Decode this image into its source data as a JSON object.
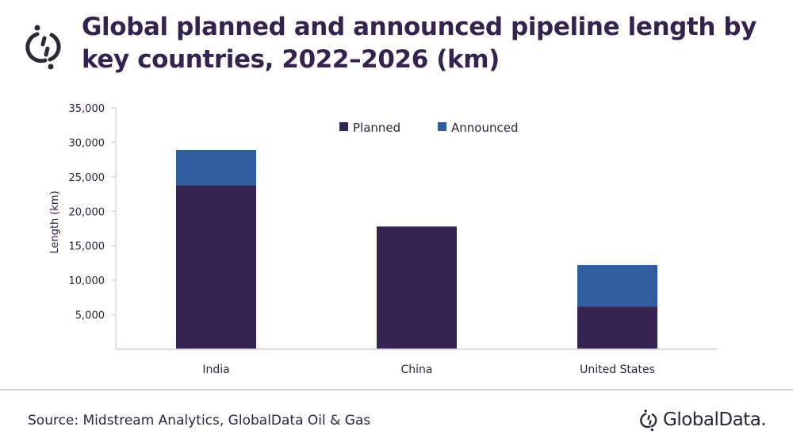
{
  "header": {
    "title": "Global planned and announced pipeline length by key countries, 2022–2026 (km)",
    "logo_icon": "globaldata-mark-icon"
  },
  "footer": {
    "source": "Source: Midstream Analytics, GlobalData Oil & Gas",
    "brand": "GlobalData."
  },
  "colors": {
    "planned": "#352452",
    "announced": "#2f5d9f",
    "text": "#2e2346",
    "axis": "#d9d9d9"
  },
  "chart_data": {
    "type": "bar",
    "stacked": true,
    "title": "Global planned and announced pipeline length by key countries, 2022–2026 (km)",
    "xlabel": "",
    "ylabel": "Length (km)",
    "ylim": [
      0,
      35000
    ],
    "yticks": [
      5000,
      10000,
      15000,
      20000,
      25000,
      30000,
      35000
    ],
    "ytick_labels": [
      "5,000",
      "10,000",
      "15,000",
      "20,000",
      "25,000",
      "30,000",
      "35,000"
    ],
    "grid": false,
    "legend_position": "top-center",
    "categories": [
      "India",
      "China",
      "United States"
    ],
    "series": [
      {
        "name": "Planned",
        "values": [
          23800,
          17800,
          6200
        ]
      },
      {
        "name": "Announced",
        "values": [
          5100,
          0,
          6000
        ]
      }
    ]
  }
}
